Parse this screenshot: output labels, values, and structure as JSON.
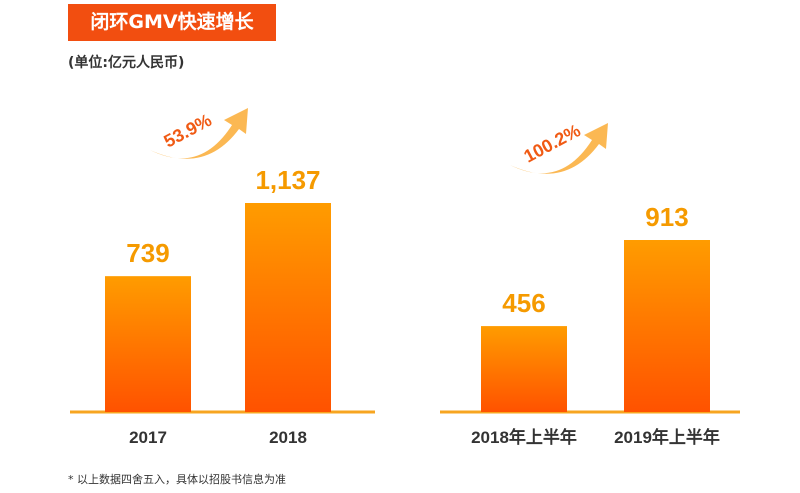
{
  "title": "闭环GMV快速增长",
  "unit": "(单位:亿元人民币)",
  "footnote": "* 以上数据四舍五入，具体以招股书信息为准",
  "colors": {
    "title_bg": "#f24e10",
    "bar_top": "#ff9c00",
    "bar_bottom": "#ff5200",
    "value_label": "#f59a00",
    "growth_label": "#f05a14",
    "arrow": "#fbb040",
    "baseline": "#f7a520"
  },
  "chart_data": [
    {
      "type": "bar",
      "categories": [
        "2017",
        "2018"
      ],
      "values": [
        739,
        1137
      ],
      "value_labels": [
        "739",
        "1,137"
      ],
      "growth_label": "53.9%",
      "ylim": [
        0,
        1137
      ]
    },
    {
      "type": "bar",
      "categories": [
        "2018年上半年",
        "2019年上半年"
      ],
      "values": [
        456,
        913
      ],
      "value_labels": [
        "456",
        "913"
      ],
      "growth_label": "100.2%",
      "ylim": [
        0,
        913
      ]
    }
  ]
}
